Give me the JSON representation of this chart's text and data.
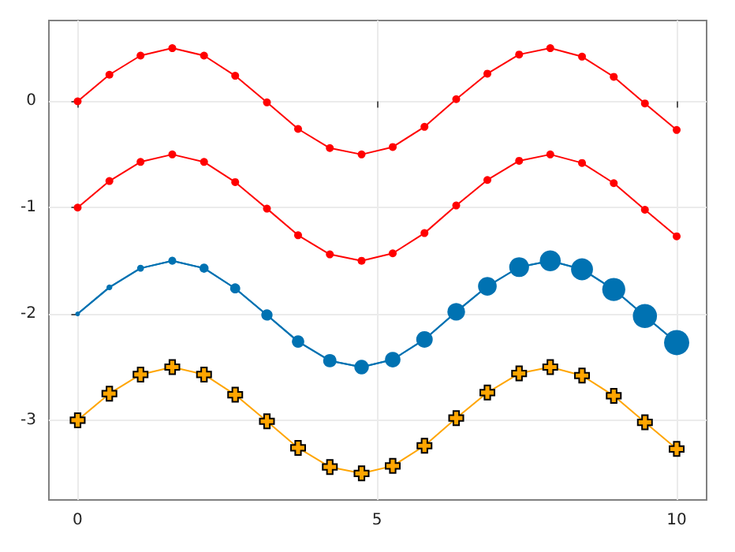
{
  "chart_data": {
    "type": "line",
    "x": [
      0,
      0.53,
      1.05,
      1.58,
      2.11,
      2.63,
      3.16,
      3.68,
      4.21,
      4.74,
      5.26,
      5.79,
      6.32,
      6.84,
      7.37,
      7.89,
      8.42,
      8.95,
      9.47,
      10
    ],
    "series": [
      {
        "color": "#ff0000",
        "marker": "circle",
        "values": [
          0,
          0.25,
          0.43,
          0.5,
          0.43,
          0.24,
          -0.01,
          -0.26,
          -0.44,
          -0.5,
          -0.43,
          -0.24,
          0.02,
          0.26,
          0.44,
          0.5,
          0.42,
          0.23,
          -0.02,
          -0.27
        ]
      },
      {
        "color": "#ff0000",
        "marker": "circle",
        "values": [
          -1,
          -0.75,
          -0.57,
          -0.5,
          -0.57,
          -0.76,
          -1.01,
          -1.26,
          -1.44,
          -1.5,
          -1.43,
          -1.24,
          -0.98,
          -0.74,
          -0.56,
          -0.5,
          -0.58,
          -0.77,
          -1.02,
          -1.27
        ]
      },
      {
        "color": "#0072b2",
        "marker": "none",
        "values": [
          -2,
          -1.75,
          -1.57,
          -1.5,
          -1.57,
          -1.76,
          -2.01,
          -2.26,
          -2.44,
          -2.5,
          -2.43,
          -2.24,
          -1.98,
          -1.74,
          -1.56,
          -1.5,
          -1.58,
          -1.77,
          -2.02,
          -2.27
        ]
      },
      {
        "type": "bubble",
        "color": "#0072b2",
        "marker": "circle",
        "values": [
          -2,
          -1.75,
          -1.57,
          -1.5,
          -1.57,
          -1.76,
          -2.01,
          -2.26,
          -2.44,
          -2.5,
          -2.43,
          -2.24,
          -1.98,
          -1.74,
          -1.56,
          -1.5,
          -1.58,
          -1.77,
          -2.02,
          -2.27
        ],
        "sizes": [
          0.035,
          0.053,
          0.075,
          0.1,
          0.13,
          0.16,
          0.2,
          0.24,
          0.28,
          0.33,
          0.38,
          0.43,
          0.49,
          0.55,
          0.62,
          0.69,
          0.76,
          0.84,
          0.92,
          1
        ]
      },
      {
        "color": "#ffa500",
        "marker": "cross",
        "values": [
          -3,
          -2.75,
          -2.57,
          -2.5,
          -2.57,
          -2.76,
          -3.01,
          -3.26,
          -3.44,
          -3.5,
          -3.43,
          -3.24,
          -2.98,
          -2.74,
          -2.56,
          -2.5,
          -2.58,
          -2.77,
          -3.02,
          -3.27
        ]
      }
    ],
    "xlim": [
      -0.48,
      10.5
    ],
    "xticks": [
      0,
      5,
      10
    ],
    "ylim": [
      -3.75,
      0.76
    ],
    "yticks": [
      -3,
      -2,
      -1,
      0
    ],
    "grid": true
  }
}
